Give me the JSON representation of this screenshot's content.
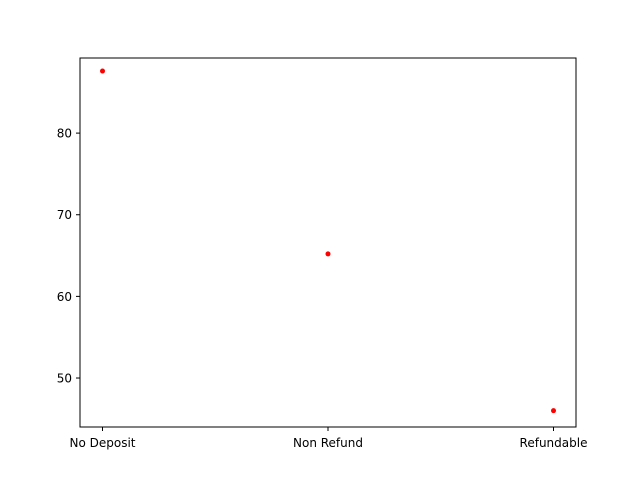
{
  "chart_data": {
    "type": "scatter",
    "categories": [
      "No Deposit",
      "Non Refund",
      "Refundable"
    ],
    "values": [
      87.6,
      65.2,
      46.0
    ],
    "ylim": [
      44,
      89.2
    ],
    "yticks": [
      50,
      60,
      70,
      80
    ],
    "grid": false,
    "marker_color": "#ff0000",
    "title": "",
    "xlabel": "",
    "ylabel": ""
  }
}
